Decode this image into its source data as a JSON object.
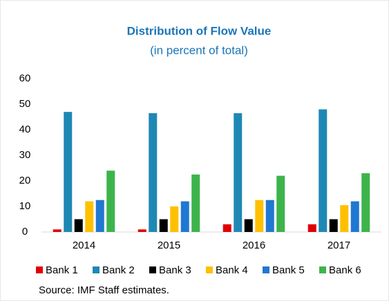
{
  "chart_data": {
    "type": "bar",
    "title": "Distribution of Flow Value",
    "subtitle": "(in percent of total)",
    "categories": [
      "2014",
      "2015",
      "2016",
      "2017"
    ],
    "series": [
      {
        "name": "Bank 1",
        "color": "#e00000",
        "values": [
          1,
          1,
          3,
          3
        ]
      },
      {
        "name": "Bank 2",
        "color": "#1e88b4",
        "values": [
          47,
          46.5,
          46.5,
          48
        ]
      },
      {
        "name": "Bank 3",
        "color": "#000000",
        "values": [
          5,
          5,
          5,
          5
        ]
      },
      {
        "name": "Bank 4",
        "color": "#ffc000",
        "values": [
          12,
          10,
          12.5,
          10.5
        ]
      },
      {
        "name": "Bank 5",
        "color": "#1f78d1",
        "values": [
          12.5,
          12,
          12.5,
          12
        ]
      },
      {
        "name": "Bank 6",
        "color": "#3cb44b",
        "values": [
          24,
          22.5,
          22,
          23
        ]
      }
    ],
    "ylim": [
      0,
      60
    ],
    "yticks": [
      0,
      10,
      20,
      30,
      40,
      50,
      60
    ],
    "grid": false,
    "legend": "bottom",
    "source": "Source: IMF Staff estimates."
  }
}
